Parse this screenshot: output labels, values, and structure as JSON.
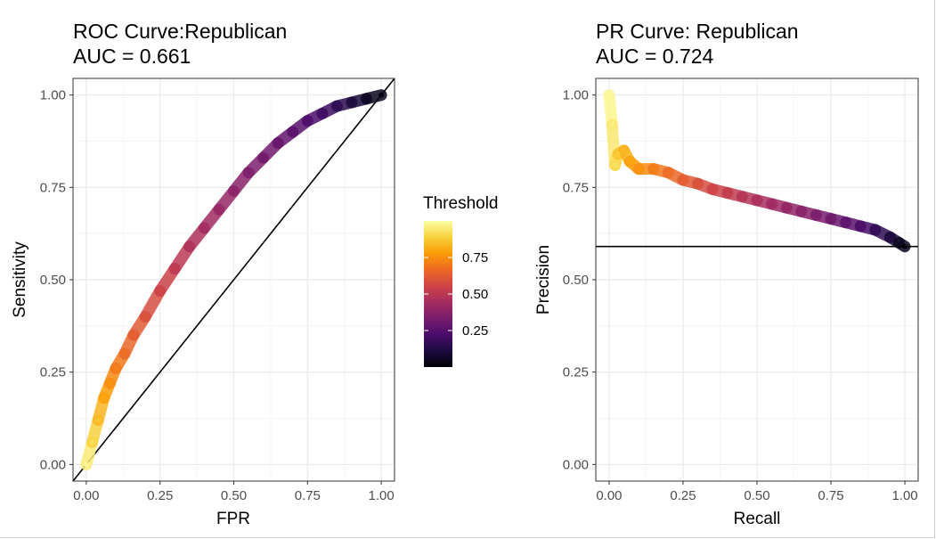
{
  "chart_data": [
    {
      "type": "line",
      "title": "ROC Curve:Republican",
      "subtitle": "AUC = 0.661",
      "xlabel": "FPR",
      "ylabel": "Sensitivity",
      "xlim": [
        0,
        1
      ],
      "ylim": [
        0,
        1
      ],
      "x_ticks": [
        "0.00",
        "0.25",
        "0.50",
        "0.75",
        "1.00"
      ],
      "y_ticks": [
        "0.00",
        "0.25",
        "0.50",
        "0.75",
        "1.00"
      ],
      "grid": true,
      "reference_line": {
        "type": "diagonal",
        "from": [
          0,
          0
        ],
        "to": [
          1,
          1
        ]
      },
      "x": [
        0,
        0.02,
        0.04,
        0.06,
        0.08,
        0.1,
        0.13,
        0.16,
        0.2,
        0.25,
        0.3,
        0.35,
        0.4,
        0.45,
        0.5,
        0.55,
        0.6,
        0.65,
        0.7,
        0.75,
        0.8,
        0.85,
        0.9,
        0.95,
        1.0
      ],
      "y": [
        0,
        0.06,
        0.12,
        0.18,
        0.22,
        0.26,
        0.3,
        0.35,
        0.4,
        0.47,
        0.53,
        0.59,
        0.64,
        0.69,
        0.74,
        0.79,
        0.83,
        0.87,
        0.9,
        0.93,
        0.95,
        0.97,
        0.98,
        0.99,
        1.0
      ],
      "threshold": [
        0.98,
        0.92,
        0.86,
        0.8,
        0.76,
        0.72,
        0.68,
        0.64,
        0.6,
        0.56,
        0.52,
        0.48,
        0.45,
        0.42,
        0.39,
        0.36,
        0.33,
        0.3,
        0.27,
        0.24,
        0.21,
        0.17,
        0.12,
        0.07,
        0.02
      ]
    },
    {
      "type": "line",
      "title": "PR Curve: Republican",
      "subtitle": "AUC = 0.724",
      "xlabel": "Recall",
      "ylabel": "Precision",
      "xlim": [
        0,
        1
      ],
      "ylim": [
        0,
        1
      ],
      "x_ticks": [
        "0.00",
        "0.25",
        "0.50",
        "0.75",
        "1.00"
      ],
      "y_ticks": [
        "0.00",
        "0.25",
        "0.50",
        "0.75",
        "1.00"
      ],
      "grid": true,
      "reference_line": {
        "type": "horizontal",
        "y": 0.59
      },
      "x": [
        0.0,
        0.01,
        0.02,
        0.03,
        0.05,
        0.07,
        0.1,
        0.15,
        0.2,
        0.25,
        0.3,
        0.35,
        0.4,
        0.45,
        0.5,
        0.55,
        0.6,
        0.65,
        0.7,
        0.75,
        0.8,
        0.85,
        0.9,
        0.95,
        0.98,
        1.0
      ],
      "y": [
        1.0,
        0.92,
        0.81,
        0.84,
        0.85,
        0.82,
        0.8,
        0.8,
        0.79,
        0.77,
        0.76,
        0.745,
        0.735,
        0.725,
        0.715,
        0.705,
        0.695,
        0.685,
        0.675,
        0.665,
        0.655,
        0.645,
        0.635,
        0.615,
        0.6,
        0.59
      ],
      "threshold": [
        0.99,
        0.96,
        0.93,
        0.88,
        0.84,
        0.8,
        0.77,
        0.72,
        0.68,
        0.64,
        0.6,
        0.56,
        0.53,
        0.5,
        0.47,
        0.44,
        0.41,
        0.38,
        0.35,
        0.32,
        0.28,
        0.24,
        0.19,
        0.12,
        0.07,
        0.02
      ]
    }
  ],
  "legend": {
    "title": "Threshold",
    "placement": "between panels, right of ROC panel",
    "ticks": [
      "0.75",
      "0.50",
      "0.25"
    ],
    "tick_values": [
      0.75,
      0.5,
      0.25
    ],
    "range": [
      0.0,
      1.0
    ],
    "palette": [
      "#000004",
      "#1b0c41",
      "#4a0c6b",
      "#781c6d",
      "#a52c60",
      "#cf4446",
      "#ed6925",
      "#fb9b06",
      "#f7d13d",
      "#fcffa4"
    ]
  },
  "colors": {
    "grid_major": "#ebebeb",
    "grid_minor": "#f5f5f5",
    "panel_border": "#333333",
    "reference_line": "#000000",
    "axis_text": "#4d4d4d",
    "text": "#000000"
  }
}
